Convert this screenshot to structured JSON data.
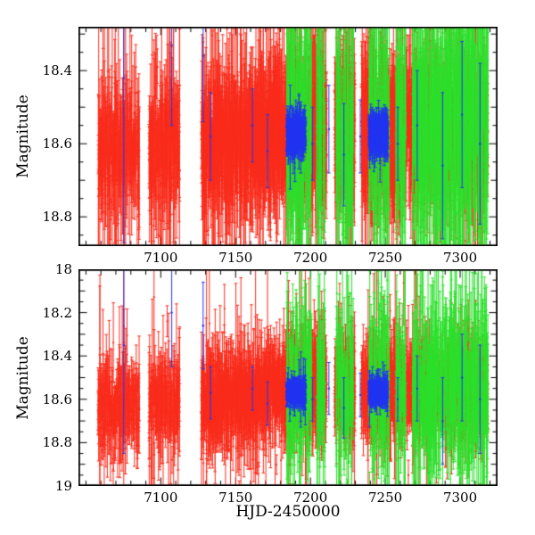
{
  "figure": {
    "xlabel": "HJD-2450000",
    "ylabel": "Magnitude",
    "background": "#ffffff",
    "axis_color": "#000000"
  },
  "chart_data": [
    {
      "type": "scatter",
      "panel": "top",
      "seed": 911,
      "xlim": [
        7045,
        7325
      ],
      "ylim": [
        18.28,
        18.88
      ],
      "x_ticks": {
        "major": [
          7100,
          7150,
          7200,
          7250,
          7300
        ],
        "labels": [
          "7100",
          "7150",
          "7200",
          "7250",
          "7300"
        ],
        "minor_step": 10
      },
      "y_ticks": {
        "major": [
          18.4,
          18.6,
          18.8
        ],
        "labels": [
          "18.4",
          "18.6",
          "18.8"
        ],
        "minor_step": 0.05
      },
      "series": [
        {
          "name": "red-photometry",
          "color": "#f92c1c",
          "sigma": 0.06,
          "err_base": 0.09,
          "err_spread": 0.55,
          "outlier_frac": 0.06,
          "radius": 1.1,
          "trend": [
            [
              7055,
              18.615
            ],
            [
              7120,
              18.6
            ],
            [
              7160,
              18.585
            ],
            [
              7195,
              18.55
            ],
            [
              7230,
              18.575
            ],
            [
              7260,
              18.56
            ],
            [
              7320,
              18.565
            ]
          ],
          "runs": [
            {
              "x0": 7058,
              "x1": 7085,
              "n": 8
            },
            {
              "x0": 7092,
              "x1": 7112,
              "n": 9
            },
            {
              "x0": 7127,
              "x1": 7182,
              "n": 13
            },
            {
              "x0": 7183,
              "x1": 7210,
              "n": 15
            },
            {
              "x0": 7216,
              "x1": 7229,
              "n": 15
            },
            {
              "x0": 7234,
              "x1": 7260,
              "n": 15
            },
            {
              "x0": 7261,
              "x1": 7318,
              "n": 9
            }
          ]
        },
        {
          "name": "green-photometry",
          "color": "#2be02b",
          "sigma": 0.13,
          "err_base": 0.16,
          "err_spread": 0.55,
          "outlier_frac": 0.05,
          "radius": 1.1,
          "trend": [
            [
              7180,
              18.56
            ],
            [
              7320,
              18.54
            ]
          ],
          "runs": [
            {
              "x0": 7184,
              "x1": 7200,
              "n": 7
            },
            {
              "x0": 7204,
              "x1": 7209,
              "n": 6
            },
            {
              "x0": 7217,
              "x1": 7228,
              "n": 6
            },
            {
              "x0": 7239,
              "x1": 7252,
              "n": 7
            },
            {
              "x0": 7257,
              "x1": 7263,
              "n": 6
            },
            {
              "x0": 7268,
              "x1": 7318,
              "n": 8
            }
          ]
        },
        {
          "name": "blue-photometry",
          "color": "#2135f0",
          "sigma": 0.02,
          "err_base": 0.028,
          "err_spread": 0.35,
          "outlier_frac": 0.02,
          "radius": 1.0,
          "trend": [
            [
              7180,
              18.575
            ],
            [
              7320,
              18.575
            ]
          ],
          "runs": [
            {
              "x0": 7184,
              "x1": 7196,
              "n": 22,
              "mean": 18.575
            },
            {
              "x0": 7239,
              "x1": 7251,
              "n": 22,
              "mean": 18.575
            }
          ],
          "singles": [
            {
              "x": 7075,
              "mag": 18.42,
              "err": 0.45
            },
            {
              "x": 7107,
              "mag": 18.33,
              "err": 0.22
            },
            {
              "x": 7128,
              "mag": 18.36,
              "err": 0.18
            },
            {
              "x": 7133,
              "mag": 18.58,
              "err": 0.12
            },
            {
              "x": 7161,
              "mag": 18.55,
              "err": 0.1
            },
            {
              "x": 7171,
              "mag": 18.62,
              "err": 0.1
            },
            {
              "x": 7201,
              "mag": 18.6,
              "err": 0.1
            },
            {
              "x": 7212,
              "mag": 18.56,
              "err": 0.12
            },
            {
              "x": 7222,
              "mag": 18.63,
              "err": 0.14
            },
            {
              "x": 7233,
              "mag": 18.58,
              "err": 0.1
            },
            {
              "x": 7258,
              "mag": 18.6,
              "err": 0.1
            },
            {
              "x": 7271,
              "mag": 18.55,
              "err": 0.15
            },
            {
              "x": 7288,
              "mag": 18.66,
              "err": 0.2
            },
            {
              "x": 7301,
              "mag": 18.52,
              "err": 0.2
            },
            {
              "x": 7313,
              "mag": 18.6,
              "err": 0.22
            }
          ]
        }
      ]
    },
    {
      "type": "scatter",
      "panel": "bottom",
      "seed": 412,
      "xlim": [
        7045,
        7325
      ],
      "ylim": [
        18.0,
        19.0
      ],
      "x_ticks": {
        "major": [
          7100,
          7150,
          7200,
          7250,
          7300
        ],
        "labels": [
          "7100",
          "7150",
          "7200",
          "7250",
          "7300"
        ],
        "minor_step": 10
      },
      "y_ticks": {
        "major": [
          18.0,
          18.2,
          18.4,
          18.6,
          18.8,
          19.0
        ],
        "labels": [
          "18",
          "18.2",
          "18.4",
          "18.6",
          "18.8",
          "19"
        ],
        "minor_step": 0.05
      },
      "series": [
        {
          "name": "red-photometry",
          "color": "#f92c1c",
          "sigma": 0.065,
          "err_base": 0.095,
          "err_spread": 0.55,
          "outlier_frac": 0.06,
          "radius": 1.1,
          "trend": [
            [
              7055,
              18.635
            ],
            [
              7120,
              18.61
            ],
            [
              7160,
              18.59
            ],
            [
              7195,
              18.52
            ],
            [
              7215,
              18.545
            ],
            [
              7240,
              18.565
            ],
            [
              7320,
              18.55
            ]
          ],
          "runs": [
            {
              "x0": 7058,
              "x1": 7085,
              "n": 8
            },
            {
              "x0": 7092,
              "x1": 7112,
              "n": 9
            },
            {
              "x0": 7127,
              "x1": 7182,
              "n": 13
            },
            {
              "x0": 7183,
              "x1": 7210,
              "n": 15
            },
            {
              "x0": 7216,
              "x1": 7229,
              "n": 15
            },
            {
              "x0": 7234,
              "x1": 7260,
              "n": 15
            },
            {
              "x0": 7261,
              "x1": 7318,
              "n": 9
            }
          ]
        },
        {
          "name": "green-photometry",
          "color": "#2be02b",
          "sigma": 0.15,
          "err_base": 0.17,
          "err_spread": 0.55,
          "outlier_frac": 0.05,
          "radius": 1.1,
          "trend": [
            [
              7180,
              18.55
            ],
            [
              7320,
              18.55
            ]
          ],
          "runs": [
            {
              "x0": 7184,
              "x1": 7200,
              "n": 7
            },
            {
              "x0": 7204,
              "x1": 7209,
              "n": 6
            },
            {
              "x0": 7217,
              "x1": 7228,
              "n": 6
            },
            {
              "x0": 7239,
              "x1": 7252,
              "n": 7
            },
            {
              "x0": 7257,
              "x1": 7263,
              "n": 6
            },
            {
              "x0": 7268,
              "x1": 7318,
              "n": 8
            }
          ]
        },
        {
          "name": "blue-photometry",
          "color": "#2135f0",
          "sigma": 0.02,
          "err_base": 0.028,
          "err_spread": 0.35,
          "outlier_frac": 0.02,
          "radius": 1.0,
          "trend": [
            [
              7180,
              18.565
            ],
            [
              7320,
              18.565
            ]
          ],
          "runs": [
            {
              "x0": 7184,
              "x1": 7196,
              "n": 22,
              "mean": 18.565
            },
            {
              "x0": 7239,
              "x1": 7251,
              "n": 22,
              "mean": 18.565
            }
          ],
          "singles": [
            {
              "x": 7075,
              "mag": 18.35,
              "err": 0.5
            },
            {
              "x": 7107,
              "mag": 18.2,
              "err": 0.25
            },
            {
              "x": 7128,
              "mag": 18.26,
              "err": 0.2
            },
            {
              "x": 7133,
              "mag": 18.57,
              "err": 0.12
            },
            {
              "x": 7161,
              "mag": 18.55,
              "err": 0.1
            },
            {
              "x": 7171,
              "mag": 18.62,
              "err": 0.1
            },
            {
              "x": 7201,
              "mag": 18.6,
              "err": 0.1
            },
            {
              "x": 7212,
              "mag": 18.55,
              "err": 0.12
            },
            {
              "x": 7222,
              "mag": 18.64,
              "err": 0.14
            },
            {
              "x": 7233,
              "mag": 18.58,
              "err": 0.1
            },
            {
              "x": 7258,
              "mag": 18.6,
              "err": 0.1
            },
            {
              "x": 7271,
              "mag": 18.55,
              "err": 0.15
            },
            {
              "x": 7288,
              "mag": 18.7,
              "err": 0.2
            },
            {
              "x": 7301,
              "mag": 18.5,
              "err": 0.2
            },
            {
              "x": 7313,
              "mag": 18.6,
              "err": 0.25
            }
          ]
        }
      ]
    }
  ]
}
